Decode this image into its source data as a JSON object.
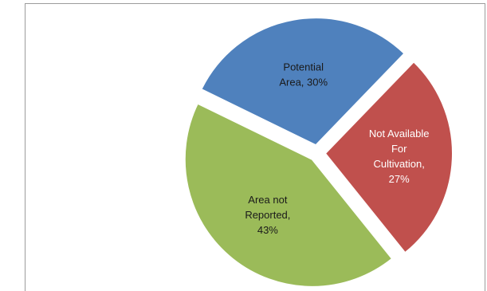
{
  "chart_data": {
    "type": "pie",
    "title": "",
    "slices": [
      {
        "name": "Potential Area",
        "value": 30,
        "label_lines": [
          "Potential",
          "Area, 30%"
        ],
        "color": "#4f81bd"
      },
      {
        "name": "Not Available For Cultivation",
        "value": 27,
        "label_lines": [
          "Not Available",
          "For",
          "Cultivation,",
          "27%"
        ],
        "color": "#c0504d"
      },
      {
        "name": "Area not Reported",
        "value": 43,
        "label_lines": [
          "Area not",
          "Reported,",
          "43%"
        ],
        "color": "#9bbb59"
      }
    ],
    "legend": "none",
    "exploded": true
  }
}
